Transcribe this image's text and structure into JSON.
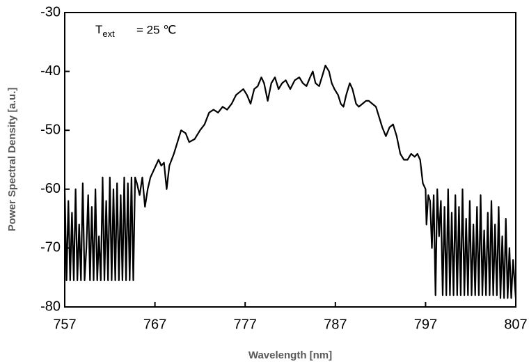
{
  "chart_data": {
    "type": "line",
    "xlabel": "Wavelength [nm]",
    "ylabel": "Power Spectral Density [a.u.]",
    "annotation": {
      "base": "T",
      "subscript": "ext",
      "text": "= 25 ℃"
    },
    "xlim": [
      757,
      807
    ],
    "xticks": [
      757,
      767,
      777,
      787,
      797,
      807
    ],
    "ylim": [
      -80,
      -30
    ],
    "yticks": [
      -80,
      -70,
      -60,
      -50,
      -40,
      -30
    ],
    "series": [
      {
        "color": "#000000",
        "x": [
          757,
          757.2,
          757.4,
          757.6,
          757.8,
          758,
          758.2,
          758.4,
          758.6,
          758.8,
          759,
          759.2,
          759.4,
          759.6,
          759.8,
          760,
          760.2,
          760.4,
          760.6,
          760.8,
          761,
          761.2,
          761.4,
          761.6,
          761.8,
          762,
          762.2,
          762.4,
          762.6,
          762.8,
          763,
          763.2,
          763.4,
          763.6,
          763.8,
          764,
          764.2,
          764.4,
          764.6,
          764.8,
          765,
          765.3,
          765.6,
          765.9,
          766.2,
          766.5,
          766.8,
          767.1,
          767.4,
          767.7,
          768,
          768.3,
          768.6,
          769.1,
          769.5,
          769.9,
          770.4,
          770.8,
          771.4,
          772,
          772.5,
          773,
          773.5,
          774,
          774.5,
          775,
          775.5,
          776,
          776.4,
          776.8,
          777.2,
          777.6,
          778,
          778.4,
          778.8,
          779.1,
          779.5,
          779.9,
          780.3,
          780.7,
          781.1,
          781.5,
          782,
          782.5,
          783,
          783.4,
          783.8,
          784.2,
          784.5,
          784.8,
          785.2,
          785.6,
          785.9,
          786.3,
          786.6,
          786.9,
          787.3,
          787.6,
          787.9,
          788.2,
          788.6,
          788.9,
          789.3,
          789.6,
          790,
          790.4,
          790.7,
          791.1,
          791.5,
          791.8,
          792.2,
          792.6,
          793,
          793.4,
          793.8,
          794.2,
          794.6,
          795,
          795.4,
          795.8,
          796.1,
          796.4,
          796.7,
          797,
          797.1,
          797.3,
          797.5,
          797.7,
          797.9,
          798.1,
          798.3,
          798.5,
          798.7,
          798.9,
          799.1,
          799.3,
          799.5,
          799.7,
          799.9,
          800.1,
          800.3,
          800.5,
          800.7,
          800.9,
          801.1,
          801.3,
          801.5,
          801.7,
          801.9,
          802.1,
          802.3,
          802.5,
          802.7,
          802.9,
          803.1,
          803.3,
          803.5,
          803.7,
          803.9,
          804.1,
          804.3,
          804.5,
          804.7,
          804.9,
          805.1,
          805.3,
          805.5,
          805.7,
          805.9,
          806.1,
          806.3,
          806.5,
          806.7,
          807
        ],
        "values": [
          -60,
          -75.5,
          -62,
          -75.5,
          -64,
          -75.5,
          -60,
          -75.5,
          -66,
          -75.5,
          -59,
          -75.5,
          -70,
          -61,
          -75.5,
          -63,
          -75.5,
          -60,
          -75.5,
          -68,
          -75.5,
          -58,
          -75.5,
          -62,
          -75.5,
          -58,
          -75.5,
          -60,
          -75.5,
          -59,
          -75.5,
          -61,
          -75.5,
          -58,
          -75.5,
          -59,
          -75.5,
          -58,
          -75.5,
          -58,
          -59,
          -61,
          -58,
          -63,
          -60,
          -58,
          -57,
          -56,
          -55,
          -56,
          -55.5,
          -60,
          -56,
          -54,
          -52,
          -50,
          -50.5,
          -52,
          -51.5,
          -50,
          -49,
          -47,
          -46.5,
          -47,
          -46,
          -46.5,
          -45.5,
          -44,
          -43.5,
          -43,
          -44,
          -45.5,
          -43,
          -42.5,
          -41,
          -42,
          -45,
          -42,
          -41,
          -43,
          -42,
          -41.5,
          -43,
          -41.5,
          -41,
          -42,
          -42.5,
          -41,
          -40,
          -42,
          -42.5,
          -40.5,
          -39,
          -40,
          -42,
          -43,
          -44,
          -45.5,
          -46,
          -44,
          -42,
          -43,
          -45.5,
          -46,
          -45.5,
          -45,
          -45,
          -45.5,
          -46,
          -47.5,
          -49.5,
          -51,
          -49.5,
          -49,
          -51,
          -54,
          -55,
          -55,
          -54,
          -54.5,
          -54,
          -55,
          -59,
          -60,
          -66,
          -61,
          -62,
          -70,
          -61,
          -78,
          -60,
          -68,
          -62,
          -78,
          -63,
          -78,
          -60,
          -78,
          -64,
          -78,
          -61,
          -78,
          -63,
          -78,
          -60,
          -78,
          -65,
          -78,
          -62,
          -78,
          -66,
          -78,
          -63,
          -78,
          -61,
          -78,
          -67,
          -78,
          -64,
          -78,
          -62,
          -78,
          -66,
          -78,
          -63,
          -78.5,
          -68,
          -78.5,
          -65,
          -78.5,
          -70,
          -78.5,
          -72,
          -78.5
        ]
      }
    ]
  }
}
